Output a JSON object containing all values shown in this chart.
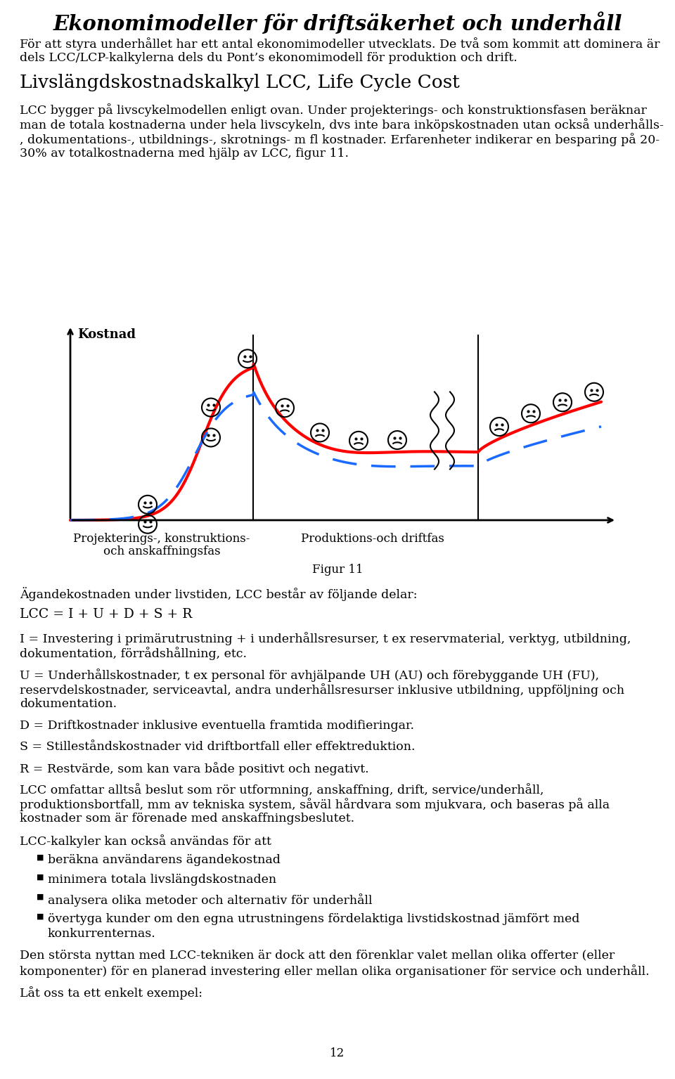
{
  "title": "Ekonomimodeller för driftsäkerhet och underhåll",
  "bg_color": "#ffffff",
  "text_color": "#000000",
  "para1_lines": [
    "För att styra underhållet har ett antal ekonomimodeller utvecklats. De två som kommit att dominera är",
    "dels LCC/LCP-kalkylerna dels du Pont’s ekonomimodell för produktion och drift."
  ],
  "heading2": "Livslängdskostnadskalkyl LCC, Life Cycle Cost",
  "para2_lines": [
    "LCC bygger på livscykelmodellen enligt ovan. Under projekterings- och konstruktionsfasen beräknar",
    "man de totala kostnaderna under hela livscykeln, dvs inte bara inköpskostnaden utan också underhålls-",
    ", dokumentations-, utbildnings-, skrotnings- m fl kostnader. Erfarenheter indikerar en besparing på 20-",
    "30% av totalkostnaderna med hjälp av LCC, figur 11."
  ],
  "ylabel": "Kostnad",
  "fig_caption": "Figur 11",
  "label1_lines": [
    "Projekterings-, konstruktions-",
    "och anskaffningsfas"
  ],
  "label2": "Produktions-och driftfas",
  "para3": "Ägandekostnaden under livstiden, LCC består av följande delar:",
  "formula": "LCC = I + U + D + S + R",
  "para4_lines": [
    "I = Investering i primärutrustning + i underhållsresurser, t ex reservmaterial, verktyg, utbildning,",
    "dokumentation, förrådshållning, etc."
  ],
  "para5_lines": [
    "U = Underhållskostnader, t ex personal för avhjälpande UH (AU) och förebyggande UH (FU),",
    "reservdelskostnader, serviceavtal, andra underhållsresurser inklusive utbildning, uppföljning och",
    "dokumentation."
  ],
  "para6": "D = Driftkostnader inklusive eventuella framtida modifieringar.",
  "para7": "S = Stilleståndskostnader vid driftbortfall eller effektreduktion.",
  "para8": "R = Restvärde, som kan vara både positivt och negativt.",
  "para9_lines": [
    "LCC omfattar alltså beslut som rör utformning, anskaffning, drift, service/underhåll,",
    "produktionsbortfall, mm av tekniska system, såväl hårdvara som mjukvara, och baseras på alla",
    "kostnader som är förenade med anskaffningsbeslutet."
  ],
  "para10": "LCC-kalkyler kan också användas för att",
  "bullet1": "beräkna användarens ägandekostnad",
  "bullet2": "minimera totala livslängdskostnaden",
  "bullet3": "analysera olika metoder och alternativ för underhåll",
  "bullet4_lines": [
    "övertyga kunder om den egna utrustningens fördelaktiga livstidskostnad jämfört med",
    "konkurrenternas."
  ],
  "para11_lines": [
    "Den största nyttan med LCC-tekniken är dock att den förenklar valet mellan olika offerter (eller",
    "komponenter) för en planerad investering eller mellan olika organisationer för service och underhåll."
  ],
  "para12": "Låt oss ta ett enkelt exempel:",
  "page_num": "12"
}
